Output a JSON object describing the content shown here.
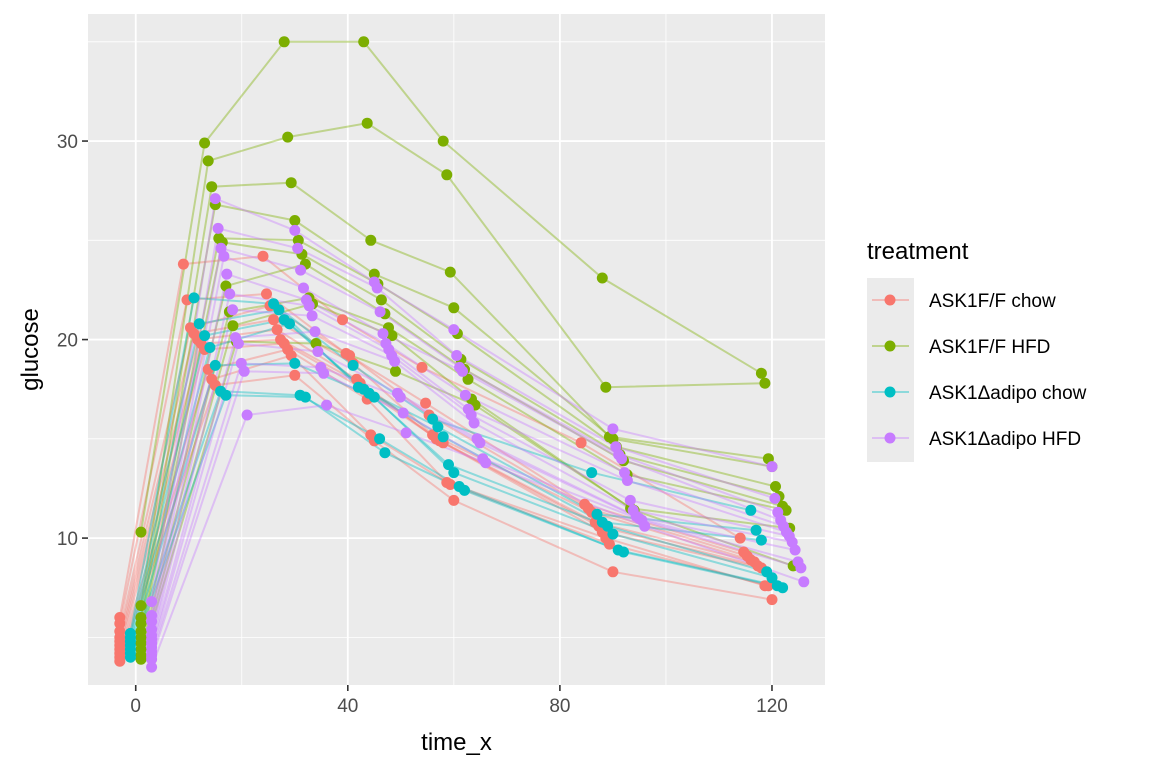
{
  "chart_data": {
    "type": "line",
    "title": "",
    "xlabel": "time_x",
    "ylabel": "glucose",
    "xlim": [
      -9,
      130
    ],
    "ylim": [
      2.6,
      36.4
    ],
    "x_ticks": [
      0,
      40,
      80,
      120
    ],
    "y_ticks": [
      10,
      20,
      30
    ],
    "grid": true,
    "legend": {
      "title": "treatment",
      "placement": "right"
    },
    "series": [
      {
        "name": "ASK1F/F chow",
        "color": "#F8766D",
        "offset": -3,
        "subjects": [
          [
            6.0,
            23.8,
            24.2,
            21.0,
            18.6,
            14.8,
            10.0
          ],
          [
            5.7,
            22.0,
            22.3,
            19.3,
            16.8,
            11.7,
            9.3
          ],
          [
            5.3,
            20.6,
            21.7,
            19.2,
            16.2,
            11.5,
            9.1
          ],
          [
            5.0,
            20.3,
            21.0,
            18.8,
            15.2,
            11.3,
            8.9
          ],
          [
            4.8,
            20.0,
            20.5,
            18.0,
            15.0,
            10.8,
            8.8
          ],
          [
            4.6,
            19.8,
            20.0,
            17.8,
            14.9,
            10.6,
            8.6
          ],
          [
            4.4,
            19.5,
            19.8,
            17.5,
            14.8,
            10.3,
            8.5
          ],
          [
            4.2,
            18.5,
            19.5,
            17.0,
            12.8,
            10.0,
            7.6
          ],
          [
            4.0,
            18.0,
            19.2,
            15.2,
            12.7,
            9.7,
            7.6
          ],
          [
            3.8,
            17.7,
            18.2,
            14.9,
            11.9,
            8.3,
            6.9
          ]
        ]
      },
      {
        "name": "ASK1F/F HFD",
        "color": "#7CAE00",
        "offset": 1,
        "subjects": [
          [
            10.3,
            29.9,
            35.0,
            35.0,
            30.0,
            23.1,
            18.3
          ],
          [
            6.6,
            29.0,
            30.2,
            30.9,
            28.3,
            17.6,
            17.8
          ],
          [
            6.0,
            27.7,
            27.9,
            25.0,
            23.4,
            15.1,
            14.0
          ],
          [
            5.7,
            26.8,
            26.0,
            23.3,
            21.6,
            15.0,
            13.6
          ],
          [
            5.3,
            25.1,
            25.0,
            22.8,
            20.3,
            14.6,
            12.6
          ],
          [
            5.0,
            24.9,
            24.3,
            22.0,
            19.0,
            14.2,
            12.1
          ],
          [
            4.7,
            22.7,
            23.8,
            21.3,
            18.5,
            13.9,
            11.6
          ],
          [
            4.4,
            21.4,
            22.1,
            20.6,
            18.0,
            13.2,
            11.4
          ],
          [
            4.1,
            20.7,
            21.8,
            20.2,
            17.0,
            11.5,
            10.5
          ],
          [
            3.9,
            19.9,
            19.8,
            18.4,
            16.7,
            11.4,
            8.6
          ]
        ]
      },
      {
        "name": "ASK1Δadipo chow",
        "color": "#00BFC4",
        "offset": -1,
        "subjects": [
          [
            5.2,
            22.1,
            21.8,
            18.7,
            16.0,
            13.3,
            11.4
          ],
          [
            5.0,
            20.8,
            21.5,
            17.6,
            15.6,
            11.2,
            10.4
          ],
          [
            4.8,
            20.2,
            21.0,
            17.5,
            15.1,
            10.8,
            9.9
          ],
          [
            4.6,
            19.6,
            20.8,
            17.3,
            13.7,
            10.6,
            8.3
          ],
          [
            4.4,
            18.7,
            18.8,
            17.1,
            13.3,
            10.2,
            8.0
          ],
          [
            4.2,
            17.4,
            17.2,
            15.0,
            12.6,
            9.4,
            7.6
          ],
          [
            4.0,
            17.2,
            17.1,
            14.3,
            12.4,
            9.3,
            7.5
          ]
        ]
      },
      {
        "name": "ASK1Δadipo HFD",
        "color": "#C77CFF",
        "offset": 3,
        "subjects": [
          [
            6.8,
            27.1,
            25.5,
            22.9,
            20.5,
            15.5,
            13.6
          ],
          [
            6.1,
            25.6,
            24.6,
            22.6,
            19.2,
            14.6,
            12.0
          ],
          [
            5.8,
            24.6,
            23.5,
            21.4,
            18.6,
            14.2,
            11.3
          ],
          [
            5.4,
            24.2,
            22.6,
            20.3,
            18.4,
            14.0,
            10.9
          ],
          [
            5.1,
            23.3,
            22.0,
            19.8,
            17.2,
            13.3,
            10.6
          ],
          [
            4.9,
            22.3,
            21.7,
            19.5,
            16.5,
            12.9,
            10.3
          ],
          [
            4.7,
            21.5,
            21.2,
            19.2,
            16.2,
            11.9,
            10.1
          ],
          [
            4.5,
            20.1,
            20.4,
            18.9,
            15.8,
            11.4,
            9.8
          ],
          [
            4.3,
            19.8,
            19.4,
            17.3,
            15.0,
            11.1,
            9.4
          ],
          [
            4.1,
            18.8,
            18.6,
            17.1,
            14.8,
            11.0,
            8.8
          ],
          [
            3.9,
            18.4,
            18.3,
            16.3,
            14.0,
            10.9,
            8.5
          ],
          [
            3.5,
            16.2,
            16.7,
            15.3,
            13.8,
            10.6,
            7.8
          ]
        ]
      }
    ],
    "x_base": [
      0,
      15,
      30,
      45,
      60,
      90,
      120
    ],
    "x_jitter": [
      [
        0,
        0
      ],
      [
        -3,
        3
      ],
      [
        -3,
        3
      ],
      [
        -3,
        3
      ],
      [
        -3,
        3
      ],
      [
        -3,
        3
      ],
      [
        -3,
        3
      ]
    ]
  }
}
